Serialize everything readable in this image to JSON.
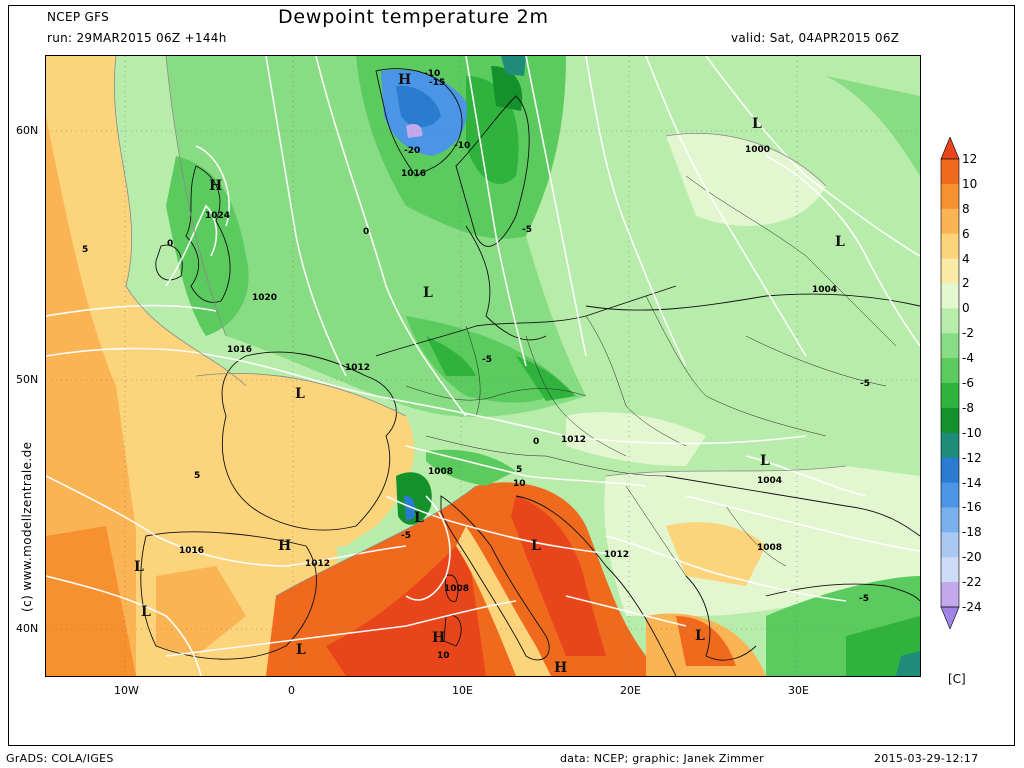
{
  "header": {
    "model": "NCEP GFS",
    "run": "run: 29MAR2015 06Z +144h",
    "title": "Dewpoint temperature 2m",
    "valid": "valid: Sat, 04APR2015 06Z"
  },
  "axes": {
    "lat_labels": [
      "60N",
      "50N",
      "40N"
    ],
    "lon_labels": [
      "10W",
      "0",
      "10E",
      "20E",
      "30E"
    ]
  },
  "copyright": "(c) www.modellzentrale.de",
  "colorbar": {
    "labels": [
      "12",
      "10",
      "8",
      "6",
      "4",
      "2",
      "0",
      "-2",
      "-4",
      "-6",
      "-8",
      "-10",
      "-12",
      "-14",
      "-16",
      "-18",
      "-20",
      "-22",
      "-24"
    ],
    "colors": [
      "#e8461a",
      "#f06a1e",
      "#f7902f",
      "#fbb454",
      "#fbd47c",
      "#fbeaa6",
      "#e2f6cf",
      "#b8ecaa",
      "#88dc84",
      "#5ccb5f",
      "#2fb33d",
      "#14912a",
      "#1f8c7a",
      "#2b7bd0",
      "#4a95e5",
      "#7ab0ee",
      "#a9c9f3",
      "#cfdcf7",
      "#c4a8ec",
      "#a184e6"
    ],
    "unit": "[C]"
  },
  "pressure_labels": [
    "1016",
    "1024",
    "1020",
    "1016",
    "1012",
    "1012",
    "1008",
    "1016",
    "1012",
    "1008",
    "1012",
    "1008",
    "1004",
    "1004",
    "1000"
  ],
  "dewpoint_labels": [
    "-10",
    "-15",
    "-20",
    "-10",
    "-5",
    "0",
    "5",
    "-5",
    "-5",
    "0",
    "5",
    "10",
    "10",
    "-5",
    "5",
    "0",
    "-5"
  ],
  "pressure_centers": [
    "H",
    "H",
    "L",
    "L",
    "L",
    "H",
    "L",
    "L",
    "H",
    "L",
    "H",
    "L",
    "L",
    "L",
    "L",
    "L"
  ],
  "footer": {
    "left": "GrADS: COLA/IGES",
    "center": "data: NCEP; graphic: Janek Zimmer",
    "right": "2015-03-29-12:17"
  }
}
